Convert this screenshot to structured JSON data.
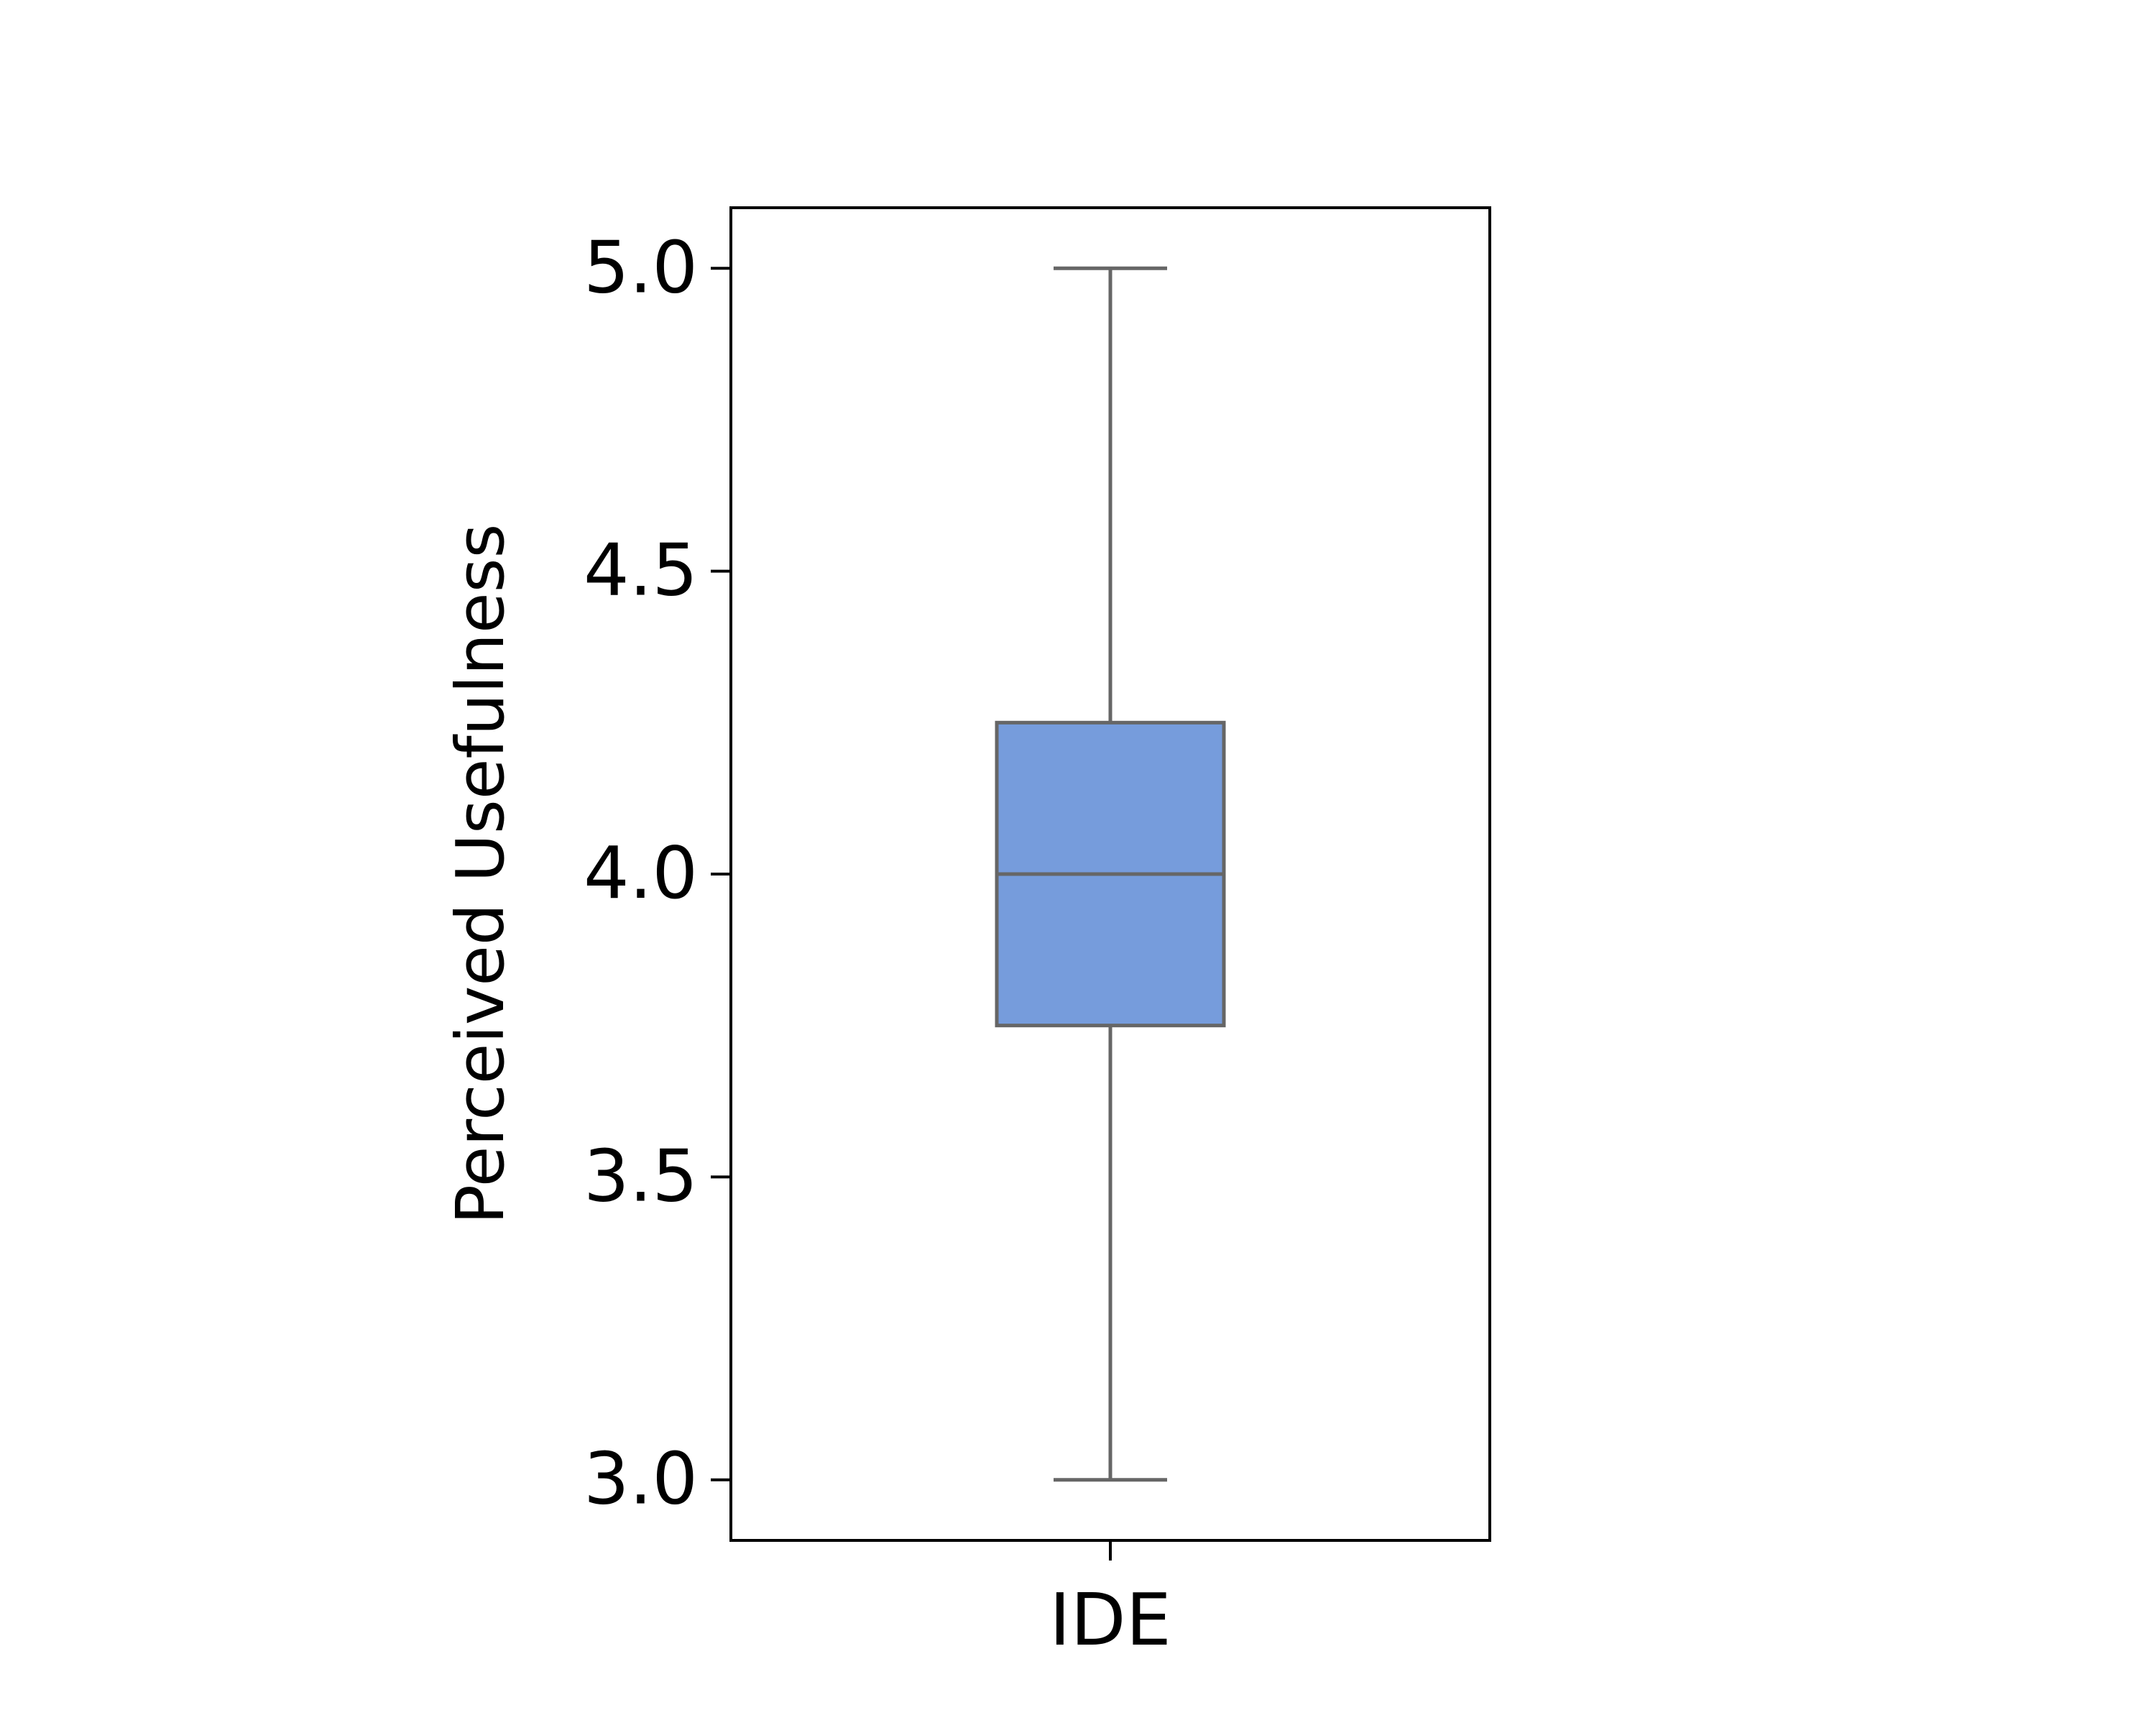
{
  "chart_data": {
    "type": "box",
    "title": "",
    "xlabel": "",
    "ylabel": "Perceived Usefulness",
    "ylim": [
      2.9,
      5.1
    ],
    "yticks": [
      3.0,
      3.5,
      4.0,
      4.5,
      5.0
    ],
    "ytick_labels": [
      "3.0",
      "3.5",
      "4.0",
      "4.5",
      "5.0"
    ],
    "categories": [
      "IDE"
    ],
    "boxes": [
      {
        "category": "IDE",
        "whisker_low": 3.0,
        "q1": 3.75,
        "median": 4.0,
        "q3": 4.25,
        "whisker_high": 5.0
      }
    ],
    "grid": false,
    "legend": "none",
    "colors": {
      "box_fill": "#769cdc",
      "box_edge": "#666666",
      "axis": "#000000"
    }
  }
}
